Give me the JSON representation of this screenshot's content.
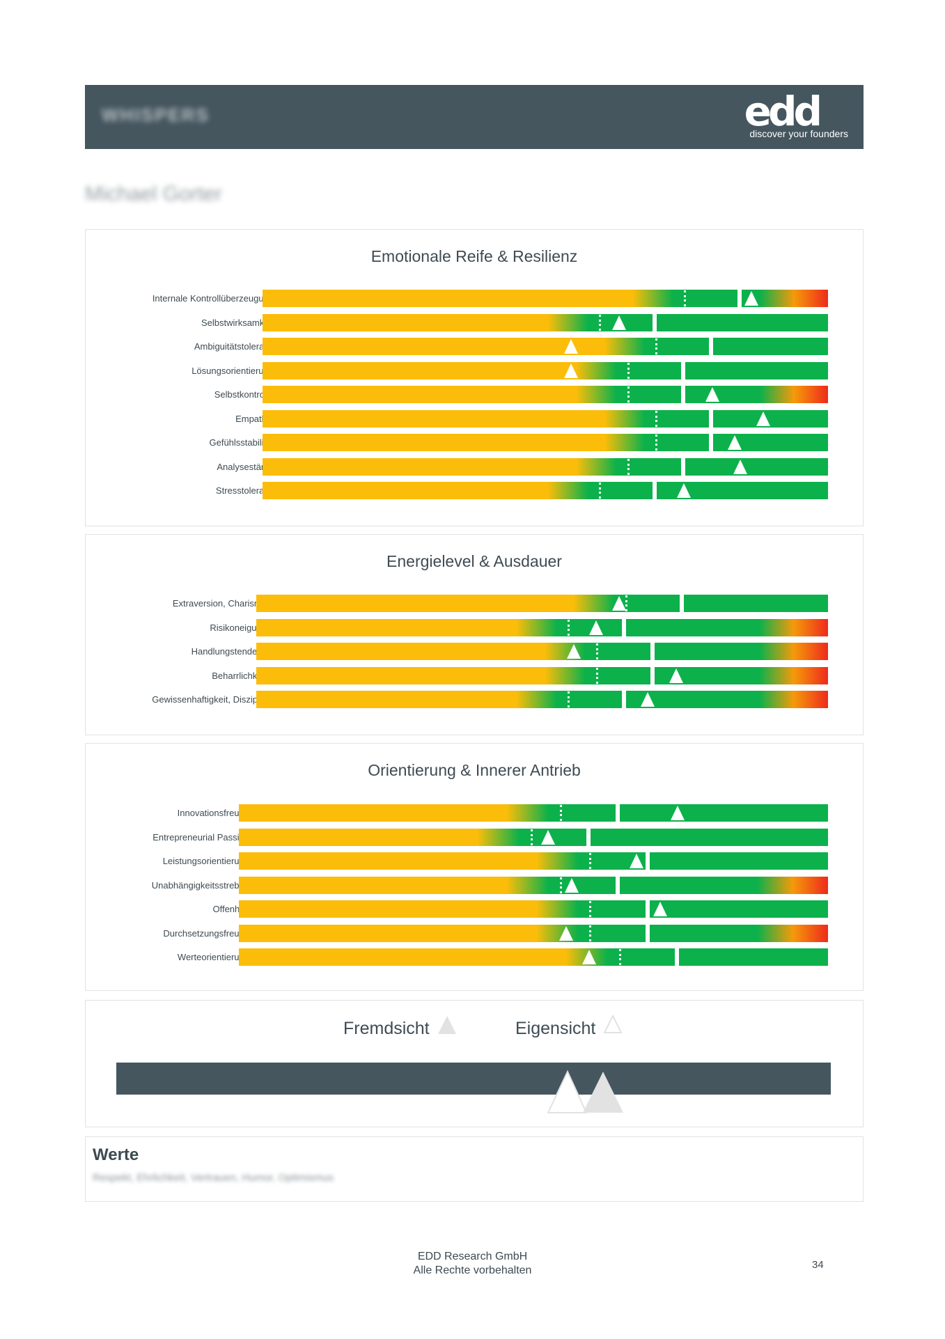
{
  "header": {
    "title_blurred": "WHISPERS",
    "logo_text": "edd",
    "logo_tagline": "discover your founders",
    "background_color": "#45565f"
  },
  "person_name_blurred": "Michael Gorter",
  "colors": {
    "yellow": "#fbbd09",
    "green": "#0cb14b",
    "orange": "#f59a0a",
    "red": "#ee2a1c",
    "dark": "#45565f"
  },
  "sections": [
    {
      "title": "Emotionale Reife & Resilienz",
      "rows": [
        {
          "label": "Internale Kontrollüberzeugung",
          "self": 0.745,
          "external": 0.865,
          "profile": "full"
        },
        {
          "label": "Selbstwirksamkeit",
          "self": 0.595,
          "external": 0.63,
          "profile": "green"
        },
        {
          "label": "Ambiguitätstoleranz",
          "self": 0.695,
          "external": 0.545,
          "profile": "green"
        },
        {
          "label": "Lösungsorientierung",
          "self": 0.645,
          "external": 0.545,
          "profile": "green"
        },
        {
          "label": "Selbstkontrolle",
          "self": 0.645,
          "external": 0.795,
          "profile": "full"
        },
        {
          "label": "Empathie",
          "self": 0.695,
          "external": 0.885,
          "profile": "green"
        },
        {
          "label": "Gefühlsstabilität",
          "self": 0.695,
          "external": 0.835,
          "profile": "green"
        },
        {
          "label": "Analysestärke",
          "self": 0.645,
          "external": 0.845,
          "profile": "green"
        },
        {
          "label": "Stresstoleranz",
          "self": 0.595,
          "external": 0.745,
          "profile": "green"
        }
      ]
    },
    {
      "title": "Energielevel & Ausdauer",
      "rows": [
        {
          "label": "Extraversion, Charisma",
          "self": 0.645,
          "external": 0.635,
          "profile": "green"
        },
        {
          "label": "Risikoneigung",
          "self": 0.545,
          "external": 0.595,
          "profile": "full"
        },
        {
          "label": "Handlungstendenz",
          "self": 0.595,
          "external": 0.555,
          "profile": "full"
        },
        {
          "label": "Beharrlichkeit",
          "self": 0.595,
          "external": 0.735,
          "profile": "full"
        },
        {
          "label": "Gewissenhaftigkeit, Disziplin",
          "self": 0.545,
          "external": 0.685,
          "profile": "full"
        }
      ]
    },
    {
      "title": "Orientierung & Innerer Antrieb",
      "rows": [
        {
          "label": "Innovationsfreude",
          "self": 0.545,
          "external": 0.745,
          "profile": "green"
        },
        {
          "label": "Entrepreneurial Passion",
          "self": 0.495,
          "external": 0.525,
          "profile": "green"
        },
        {
          "label": "Leistungsorientierung",
          "self": 0.595,
          "external": 0.675,
          "profile": "green"
        },
        {
          "label": "Unabhängigkeitsstreben",
          "self": 0.545,
          "external": 0.565,
          "profile": "full"
        },
        {
          "label": "Offenheit",
          "self": 0.595,
          "external": 0.715,
          "profile": "green"
        },
        {
          "label": "Durchsetzungsfreude",
          "self": 0.595,
          "external": 0.555,
          "profile": "full"
        },
        {
          "label": "Werteorientierung",
          "self": 0.645,
          "external": 0.595,
          "profile": "green"
        }
      ]
    }
  ],
  "legend": {
    "external_label": "Fremdsicht",
    "self_label": "Eigensicht"
  },
  "werte": {
    "title": "Werte",
    "text_blurred": "Respekt, Ehrlichkeit, Vertrauen, Humor, Optimismus"
  },
  "footer": {
    "company": "EDD Research GmbH",
    "rights": "Alle Rechte vorbehalten",
    "page_number": "34"
  }
}
